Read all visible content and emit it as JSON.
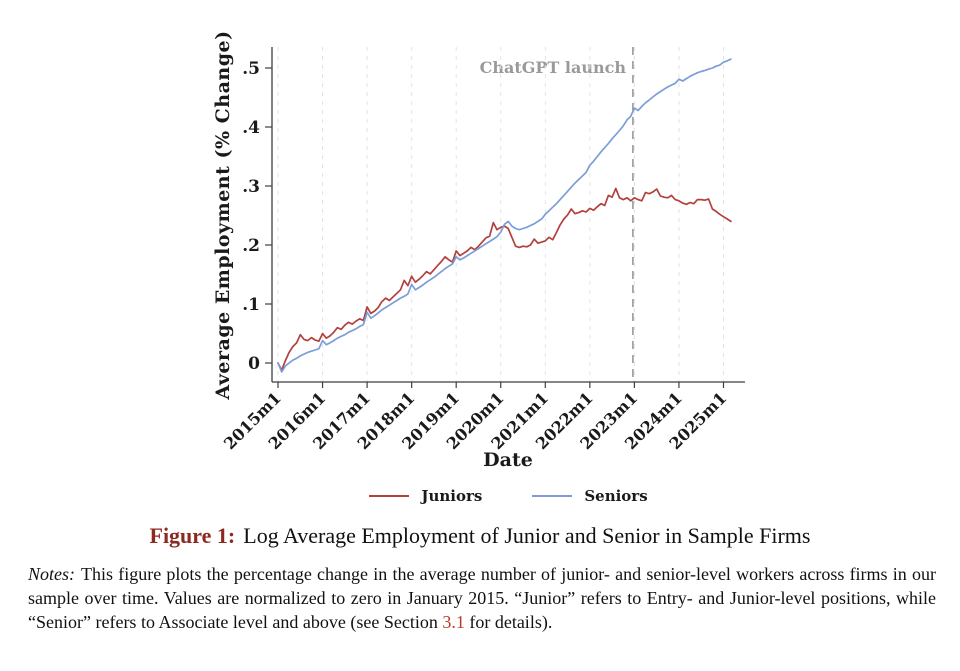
{
  "figure": {
    "caption_label": "Figure 1:",
    "caption_text": "Log Average Employment of Junior and Senior in Sample Firms",
    "notes_label": "Notes:",
    "notes_part1": "This figure plots the percentage change in the average number of junior- and senior-level workers across firms in our sample over time.  Values are normalized to zero in January 2015.  “Junior” refers to Entry- and Junior-level positions, while “Senior” refers to Associate level and above (see Section ",
    "notes_link": "3.1",
    "notes_part2": " for details)."
  },
  "colors": {
    "juniors_line": "#b2413e",
    "seniors_line": "#7b9dd9",
    "caption_label": "#8c2920",
    "section_link": "#bc3a2a",
    "annotation_gray": "#9a9a9a",
    "gridline": "#e4e4e4",
    "axis": "#3f3f3f",
    "vline": "#8a8a8a"
  },
  "chart_data": {
    "type": "line",
    "title": "",
    "xlabel": "Date",
    "ylabel": "Average Employment (% Change)",
    "x_unit": "monthly from 2015m1 to 2025m3",
    "x_tick_labels": [
      "2015m1",
      "2016m1",
      "2017m1",
      "2018m1",
      "2019m1",
      "2020m1",
      "2021m1",
      "2022m1",
      "2023m1",
      "2024m1",
      "2025m1"
    ],
    "y_tick_labels": [
      "0",
      ".1",
      ".2",
      ".3",
      ".4",
      ".5"
    ],
    "y_tick_values": [
      0,
      0.1,
      0.2,
      0.3,
      0.4,
      0.5
    ],
    "ylim": [
      -0.035,
      0.535
    ],
    "grid": "vertical-dashed-at-year-ticks",
    "legend_position": "bottom-center",
    "annotation": {
      "label": "ChatGPT launch",
      "x_month_index": 95.6
    },
    "series": [
      {
        "name": "Juniors",
        "color": "#b2413e",
        "values": [
          0,
          -0.012,
          0.004,
          0.018,
          0.028,
          0.034,
          0.048,
          0.04,
          0.038,
          0.043,
          0.039,
          0.037,
          0.05,
          0.042,
          0.046,
          0.052,
          0.06,
          0.057,
          0.064,
          0.069,
          0.066,
          0.071,
          0.075,
          0.072,
          0.095,
          0.084,
          0.088,
          0.094,
          0.104,
          0.11,
          0.106,
          0.112,
          0.118,
          0.124,
          0.14,
          0.131,
          0.147,
          0.137,
          0.142,
          0.148,
          0.155,
          0.151,
          0.158,
          0.165,
          0.172,
          0.18,
          0.175,
          0.171,
          0.19,
          0.182,
          0.186,
          0.19,
          0.196,
          0.192,
          0.198,
          0.205,
          0.212,
          0.215,
          0.238,
          0.226,
          0.23,
          0.232,
          0.228,
          0.213,
          0.198,
          0.196,
          0.198,
          0.197,
          0.2,
          0.21,
          0.203,
          0.205,
          0.207,
          0.213,
          0.209,
          0.221,
          0.234,
          0.244,
          0.251,
          0.261,
          0.253,
          0.255,
          0.258,
          0.256,
          0.262,
          0.259,
          0.265,
          0.27,
          0.267,
          0.284,
          0.281,
          0.296,
          0.28,
          0.277,
          0.28,
          0.275,
          0.28,
          0.277,
          0.275,
          0.289,
          0.287,
          0.29,
          0.295,
          0.283,
          0.281,
          0.28,
          0.284,
          0.277,
          0.275,
          0.271,
          0.269,
          0.272,
          0.27,
          0.277,
          0.277,
          0.276,
          0.278,
          0.261,
          0.257,
          0.252,
          0.248,
          0.244,
          0.24
        ]
      },
      {
        "name": "Seniors",
        "color": "#7b9dd9",
        "values": [
          0,
          -0.015,
          -0.005,
          0,
          0.005,
          0.008,
          0.012,
          0.015,
          0.018,
          0.02,
          0.022,
          0.024,
          0.038,
          0.031,
          0.034,
          0.038,
          0.042,
          0.045,
          0.048,
          0.052,
          0.055,
          0.058,
          0.062,
          0.065,
          0.086,
          0.076,
          0.08,
          0.085,
          0.09,
          0.094,
          0.098,
          0.102,
          0.106,
          0.11,
          0.113,
          0.117,
          0.133,
          0.124,
          0.128,
          0.132,
          0.137,
          0.141,
          0.145,
          0.15,
          0.155,
          0.16,
          0.164,
          0.168,
          0.18,
          0.175,
          0.178,
          0.182,
          0.186,
          0.19,
          0.194,
          0.198,
          0.202,
          0.206,
          0.21,
          0.214,
          0.222,
          0.235,
          0.24,
          0.232,
          0.228,
          0.226,
          0.228,
          0.23,
          0.233,
          0.236,
          0.24,
          0.244,
          0.252,
          0.258,
          0.264,
          0.27,
          0.277,
          0.284,
          0.291,
          0.298,
          0.305,
          0.311,
          0.317,
          0.323,
          0.335,
          0.342,
          0.35,
          0.358,
          0.365,
          0.372,
          0.38,
          0.387,
          0.394,
          0.402,
          0.412,
          0.418,
          0.432,
          0.428,
          0.435,
          0.441,
          0.446,
          0.451,
          0.456,
          0.46,
          0.464,
          0.468,
          0.471,
          0.474,
          0.481,
          0.478,
          0.482,
          0.486,
          0.489,
          0.492,
          0.494,
          0.496,
          0.498,
          0.5,
          0.503,
          0.505,
          0.51,
          0.512,
          0.515
        ]
      }
    ]
  }
}
